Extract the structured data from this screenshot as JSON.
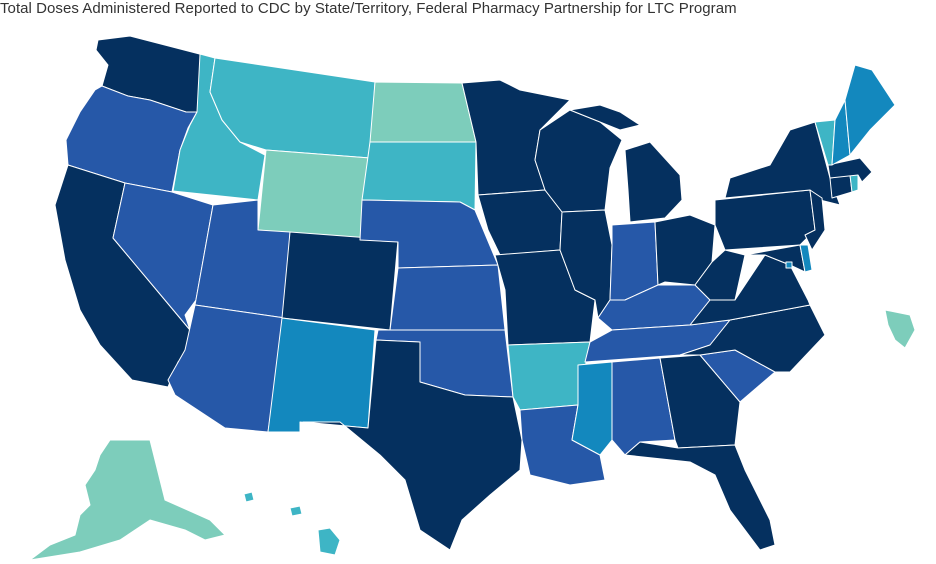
{
  "title": "Total Doses Administered Reported to CDC by State/Territory, Federal Pharmacy Partnership for LTC Program",
  "palette": {
    "darkest": "#05305f",
    "dark_blue": "#2658a8",
    "medium_blue": "#1388be",
    "light_blue": "#3eb5c5",
    "lightest": "#7dcdbb"
  },
  "states": [
    {
      "code": "WA",
      "color": "darkest"
    },
    {
      "code": "OR",
      "color": "dark_blue"
    },
    {
      "code": "CA",
      "color": "darkest"
    },
    {
      "code": "NV",
      "color": "dark_blue"
    },
    {
      "code": "ID",
      "color": "light_blue"
    },
    {
      "code": "MT",
      "color": "light_blue"
    },
    {
      "code": "WY",
      "color": "lightest"
    },
    {
      "code": "UT",
      "color": "dark_blue"
    },
    {
      "code": "AZ",
      "color": "dark_blue"
    },
    {
      "code": "CO",
      "color": "darkest"
    },
    {
      "code": "NM",
      "color": "medium_blue"
    },
    {
      "code": "ND",
      "color": "lightest"
    },
    {
      "code": "SD",
      "color": "light_blue"
    },
    {
      "code": "NE",
      "color": "dark_blue"
    },
    {
      "code": "KS",
      "color": "dark_blue"
    },
    {
      "code": "OK",
      "color": "dark_blue"
    },
    {
      "code": "TX",
      "color": "darkest"
    },
    {
      "code": "MN",
      "color": "darkest"
    },
    {
      "code": "IA",
      "color": "darkest"
    },
    {
      "code": "MO",
      "color": "darkest"
    },
    {
      "code": "AR",
      "color": "light_blue"
    },
    {
      "code": "LA",
      "color": "dark_blue"
    },
    {
      "code": "WI",
      "color": "darkest"
    },
    {
      "code": "IL",
      "color": "darkest"
    },
    {
      "code": "MI",
      "color": "darkest"
    },
    {
      "code": "IN",
      "color": "dark_blue"
    },
    {
      "code": "OH",
      "color": "darkest"
    },
    {
      "code": "KY",
      "color": "dark_blue"
    },
    {
      "code": "TN",
      "color": "dark_blue"
    },
    {
      "code": "MS",
      "color": "medium_blue"
    },
    {
      "code": "AL",
      "color": "dark_blue"
    },
    {
      "code": "GA",
      "color": "darkest"
    },
    {
      "code": "FL",
      "color": "darkest"
    },
    {
      "code": "SC",
      "color": "dark_blue"
    },
    {
      "code": "NC",
      "color": "darkest"
    },
    {
      "code": "VA",
      "color": "darkest"
    },
    {
      "code": "WV",
      "color": "darkest"
    },
    {
      "code": "PA",
      "color": "darkest"
    },
    {
      "code": "NY",
      "color": "darkest"
    },
    {
      "code": "MD",
      "color": "darkest"
    },
    {
      "code": "DE",
      "color": "medium_blue"
    },
    {
      "code": "NJ",
      "color": "darkest"
    },
    {
      "code": "CT",
      "color": "darkest"
    },
    {
      "code": "RI",
      "color": "light_blue"
    },
    {
      "code": "MA",
      "color": "darkest"
    },
    {
      "code": "VT",
      "color": "light_blue"
    },
    {
      "code": "NH",
      "color": "medium_blue"
    },
    {
      "code": "ME",
      "color": "medium_blue"
    },
    {
      "code": "DC",
      "color": "medium_blue"
    },
    {
      "code": "AK",
      "color": "lightest"
    },
    {
      "code": "HI",
      "color": "light_blue"
    },
    {
      "code": "PR",
      "color": "lightest"
    }
  ]
}
